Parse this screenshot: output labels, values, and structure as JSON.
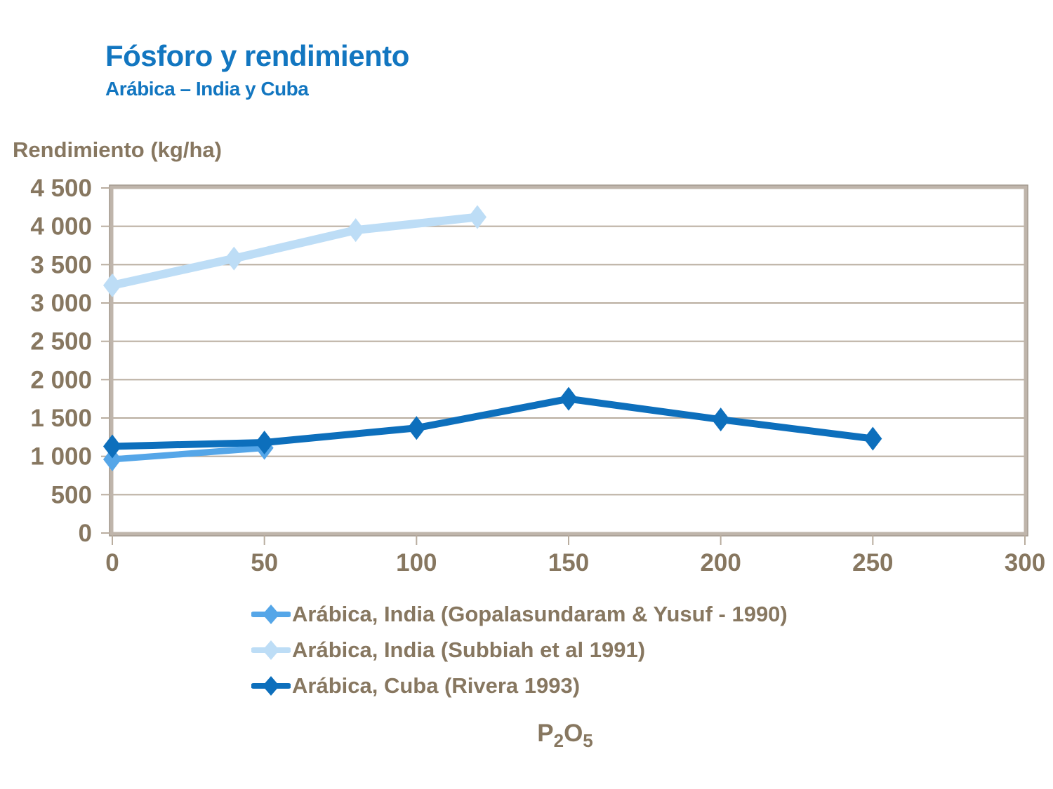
{
  "title": {
    "main": "Fósforo y rendimiento",
    "subtitle": "Arábica – India y Cuba"
  },
  "axes": {
    "y_label": "Rendimiento (kg/ha)",
    "x_label_parts": {
      "p": "P",
      "sub2": "2",
      "o": "O",
      "sub5": "5"
    }
  },
  "colors": {
    "title": "#1276C0",
    "text": "#877760",
    "gridline": "#B9AD9F",
    "plot_border": "#BFB5AB",
    "plot_border_dark": "#9A9084",
    "background": "#FFFFFF"
  },
  "chart_data": {
    "type": "line",
    "title": "Fósforo y rendimiento — Arábica, India y Cuba",
    "xlabel": "P2O5",
    "ylabel": "Rendimiento (kg/ha)",
    "xlim": [
      0,
      300
    ],
    "ylim": [
      0,
      4500
    ],
    "grid": true,
    "legend_position": "bottom",
    "x_ticks": [
      0,
      50,
      100,
      150,
      200,
      250,
      300
    ],
    "x_tick_labels": [
      "0",
      "50",
      "100",
      "150",
      "200",
      "250",
      "300"
    ],
    "y_ticks": [
      0,
      500,
      1000,
      1500,
      2000,
      2500,
      3000,
      3500,
      4000,
      4500
    ],
    "y_tick_labels": [
      "0",
      "500",
      "1 000",
      "1 500",
      "2 000",
      "2 500",
      "3 000",
      "3 500",
      "4 000",
      "4 500"
    ],
    "series": [
      {
        "name": "Arábica, India (Gopalasundaram & Yusuf - 1990)",
        "color": "#55A6E8",
        "line_width": 9,
        "marker": "diamond",
        "points": [
          [
            0,
            960
          ],
          [
            50,
            1110
          ]
        ]
      },
      {
        "name": "Arábica, India (Subbiah et al 1991)",
        "color": "#BDDDF6",
        "line_width": 12,
        "marker": "diamond",
        "points": [
          [
            0,
            3230
          ],
          [
            40,
            3580
          ],
          [
            80,
            3950
          ],
          [
            120,
            4120
          ]
        ]
      },
      {
        "name": "Arábica, Cuba (Rivera 1993)",
        "color": "#0D6FBC",
        "line_width": 10,
        "marker": "diamond",
        "points": [
          [
            0,
            1130
          ],
          [
            50,
            1180
          ],
          [
            100,
            1370
          ],
          [
            150,
            1750
          ],
          [
            200,
            1480
          ],
          [
            250,
            1230
          ]
        ]
      }
    ]
  }
}
